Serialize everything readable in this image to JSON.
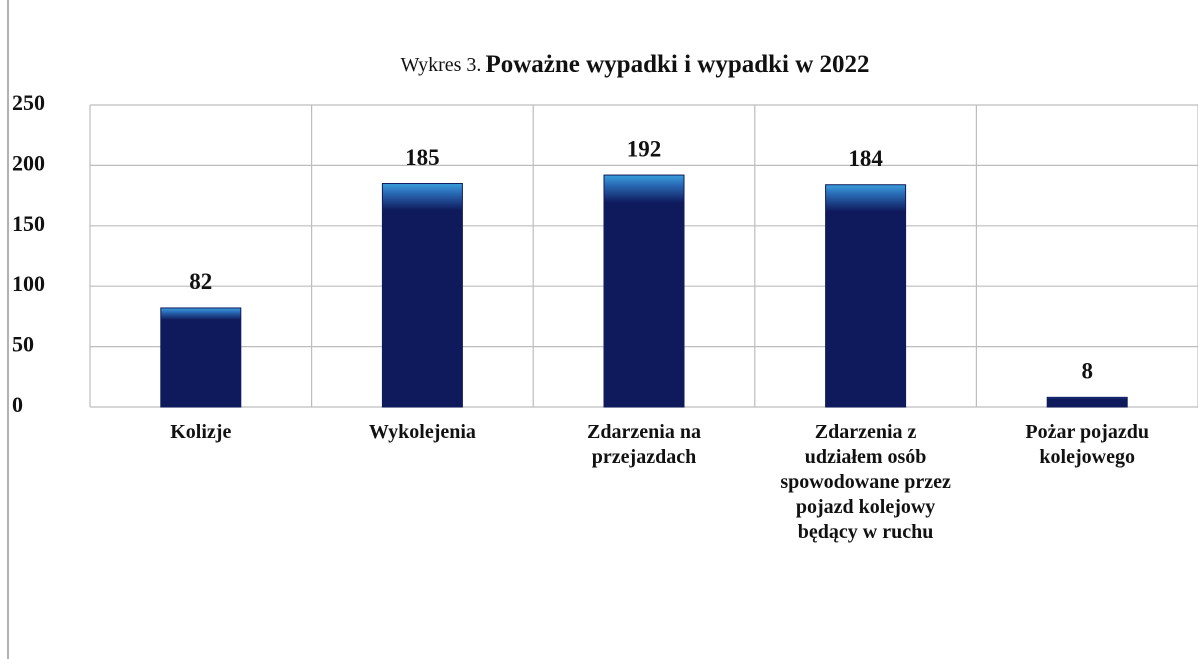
{
  "chart_data": {
    "type": "bar",
    "title_label": "Wykres 3.",
    "title": "Poważne wypadki i wypadki w 2022",
    "categories": [
      "Kolizje",
      "Wykolejenia",
      "Zdarzenia na przejazdach",
      "Zdarzenia z udziałem osób spowodowane przez pojazd kolejowy będący w ruchu",
      "Pożar pojazdu kolejowego"
    ],
    "values": [
      82,
      185,
      192,
      184,
      8
    ],
    "color": "#0f1a5c",
    "ylim": [
      0,
      250
    ],
    "yticks": [
      0,
      50,
      100,
      150,
      200,
      250
    ],
    "grid": true
  }
}
